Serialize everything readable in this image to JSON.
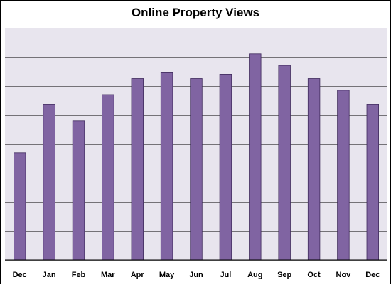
{
  "chart_data": {
    "type": "bar",
    "title": "Online Property Views",
    "xlabel": "",
    "ylabel": "",
    "categories": [
      "Dec",
      "Jan",
      "Feb",
      "Mar",
      "Apr",
      "May",
      "Jun",
      "Jul",
      "Aug",
      "Sep",
      "Oct",
      "Nov",
      "Dec"
    ],
    "values": [
      3.7,
      5.35,
      4.8,
      5.7,
      6.25,
      6.45,
      6.25,
      6.4,
      7.1,
      6.7,
      6.25,
      5.85,
      5.35
    ],
    "ylim": [
      0,
      8
    ],
    "y_gridlines": 8,
    "y_tick_labels_shown": false,
    "grid": true,
    "legend": "none",
    "colors": {
      "bar_fill": "#8064a2",
      "bar_stroke": "#3f2a5c",
      "plot_background": "#e8e5ee",
      "gridline": "#000000"
    }
  }
}
